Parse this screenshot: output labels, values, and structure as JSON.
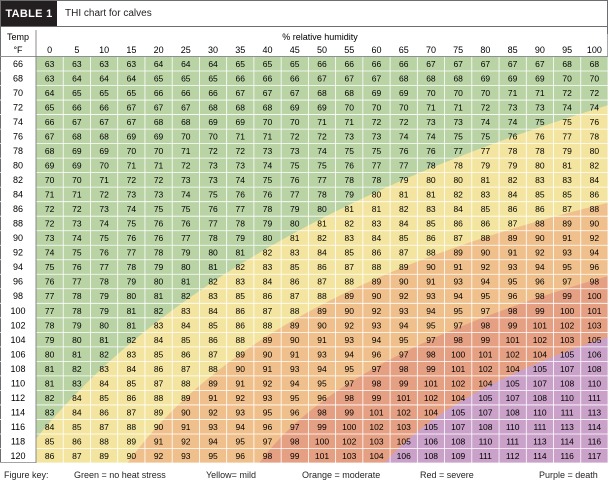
{
  "table_label": "TABLE 1",
  "title": "THI chart for calves",
  "row_header_line1": "Temp",
  "row_header_line2": "°F",
  "column_header": "% relative humidity",
  "footer": {
    "key_label": "Figure key:",
    "green": "Green = no heat stress",
    "yellow": "Yellow= mild",
    "orange": "Orange = moderate",
    "red": "Red = severe",
    "purple": "Purple = death"
  },
  "colors": {
    "green": "#b9d3a5",
    "yellow": "#f3e59f",
    "orange": "#f0c08c",
    "red": "#e5a083",
    "purple": "#c9a1c9"
  },
  "chart_data": {
    "type": "table",
    "row_label": "Temp °F",
    "column_label": "% relative humidity",
    "columns": [
      0,
      5,
      10,
      15,
      20,
      25,
      30,
      35,
      40,
      45,
      50,
      55,
      60,
      65,
      70,
      75,
      80,
      85,
      90,
      95,
      100
    ],
    "rows": [
      66,
      68,
      70,
      72,
      74,
      76,
      78,
      80,
      82,
      84,
      86,
      88,
      90,
      92,
      94,
      96,
      98,
      100,
      102,
      104,
      106,
      108,
      110,
      112,
      114,
      116,
      118,
      120
    ],
    "values": [
      [
        63,
        63,
        63,
        63,
        64,
        64,
        64,
        65,
        65,
        65,
        66,
        66,
        66,
        66,
        67,
        67,
        67,
        67,
        67,
        68,
        68
      ],
      [
        63,
        64,
        64,
        64,
        65,
        65,
        65,
        66,
        66,
        66,
        67,
        67,
        67,
        68,
        68,
        68,
        69,
        69,
        69,
        70,
        70
      ],
      [
        64,
        65,
        65,
        65,
        66,
        66,
        66,
        67,
        67,
        67,
        68,
        68,
        69,
        69,
        70,
        70,
        70,
        71,
        71,
        72,
        72
      ],
      [
        65,
        66,
        66,
        67,
        67,
        67,
        68,
        68,
        68,
        69,
        69,
        70,
        70,
        70,
        71,
        71,
        72,
        73,
        73,
        74,
        74
      ],
      [
        66,
        67,
        67,
        67,
        68,
        68,
        69,
        69,
        70,
        70,
        71,
        71,
        72,
        72,
        73,
        73,
        74,
        74,
        75,
        75,
        76
      ],
      [
        67,
        68,
        68,
        69,
        69,
        70,
        70,
        71,
        71,
        72,
        72,
        73,
        73,
        74,
        74,
        75,
        75,
        76,
        76,
        77,
        78
      ],
      [
        68,
        69,
        69,
        70,
        70,
        71,
        72,
        72,
        73,
        73,
        74,
        75,
        75,
        76,
        76,
        77,
        77,
        78,
        78,
        79,
        80
      ],
      [
        69,
        69,
        70,
        71,
        71,
        72,
        73,
        73,
        74,
        75,
        75,
        76,
        77,
        77,
        78,
        78,
        79,
        79,
        80,
        81,
        82
      ],
      [
        70,
        70,
        71,
        72,
        72,
        73,
        73,
        74,
        75,
        76,
        77,
        78,
        78,
        79,
        80,
        80,
        81,
        82,
        83,
        83,
        84
      ],
      [
        71,
        71,
        72,
        73,
        73,
        74,
        75,
        76,
        76,
        77,
        78,
        79,
        80,
        81,
        81,
        82,
        83,
        84,
        85,
        85,
        86
      ],
      [
        72,
        72,
        73,
        74,
        75,
        75,
        76,
        77,
        78,
        79,
        80,
        81,
        81,
        82,
        83,
        84,
        85,
        86,
        86,
        87,
        88
      ],
      [
        72,
        73,
        74,
        75,
        76,
        76,
        77,
        78,
        79,
        80,
        81,
        82,
        83,
        84,
        85,
        86,
        86,
        87,
        88,
        89,
        90
      ],
      [
        73,
        74,
        75,
        76,
        76,
        77,
        78,
        79,
        80,
        81,
        82,
        83,
        84,
        85,
        86,
        87,
        88,
        89,
        90,
        91,
        92
      ],
      [
        74,
        75,
        76,
        77,
        78,
        79,
        80,
        81,
        82,
        83,
        84,
        85,
        86,
        87,
        88,
        89,
        90,
        91,
        92,
        93,
        94
      ],
      [
        75,
        76,
        77,
        78,
        79,
        80,
        81,
        82,
        83,
        85,
        86,
        87,
        88,
        89,
        90,
        91,
        92,
        93,
        94,
        95,
        96
      ],
      [
        76,
        77,
        78,
        79,
        80,
        81,
        82,
        83,
        84,
        86,
        87,
        88,
        89,
        90,
        91,
        93,
        94,
        95,
        96,
        97,
        98
      ],
      [
        77,
        78,
        79,
        80,
        81,
        82,
        83,
        85,
        86,
        87,
        88,
        89,
        90,
        92,
        93,
        94,
        95,
        96,
        98,
        99,
        100
      ],
      [
        77,
        78,
        79,
        81,
        82,
        83,
        84,
        86,
        87,
        88,
        89,
        90,
        92,
        93,
        94,
        95,
        97,
        98,
        99,
        100,
        101
      ],
      [
        78,
        79,
        80,
        81,
        83,
        84,
        85,
        86,
        88,
        89,
        90,
        92,
        93,
        94,
        95,
        97,
        98,
        99,
        101,
        102,
        103
      ],
      [
        79,
        80,
        81,
        82,
        84,
        85,
        86,
        88,
        89,
        90,
        91,
        93,
        94,
        95,
        97,
        98,
        99,
        101,
        102,
        103,
        105
      ],
      [
        80,
        81,
        82,
        83,
        85,
        86,
        87,
        89,
        90,
        91,
        93,
        94,
        96,
        97,
        98,
        100,
        101,
        102,
        104,
        105,
        106
      ],
      [
        81,
        82,
        83,
        84,
        86,
        87,
        88,
        90,
        91,
        93,
        94,
        95,
        97,
        98,
        99,
        101,
        102,
        104,
        105,
        107,
        108
      ],
      [
        81,
        83,
        84,
        85,
        87,
        88,
        89,
        91,
        92,
        94,
        95,
        97,
        98,
        99,
        101,
        102,
        104,
        105,
        107,
        108,
        110
      ],
      [
        82,
        84,
        85,
        86,
        88,
        89,
        91,
        92,
        93,
        95,
        96,
        98,
        99,
        101,
        102,
        104,
        105,
        107,
        108,
        110,
        111
      ],
      [
        83,
        84,
        86,
        87,
        89,
        90,
        92,
        93,
        95,
        96,
        98,
        99,
        101,
        102,
        104,
        105,
        107,
        108,
        110,
        111,
        113
      ],
      [
        84,
        85,
        87,
        88,
        90,
        91,
        93,
        94,
        96,
        97,
        99,
        100,
        102,
        103,
        105,
        107,
        108,
        110,
        111,
        113,
        114
      ],
      [
        85,
        86,
        88,
        89,
        91,
        92,
        94,
        95,
        97,
        98,
        100,
        102,
        103,
        105,
        106,
        108,
        110,
        111,
        113,
        114,
        116
      ],
      [
        86,
        87,
        89,
        90,
        92,
        93,
        95,
        96,
        98,
        99,
        101,
        103,
        104,
        106,
        108,
        109,
        111,
        112,
        114,
        116,
        117
      ]
    ],
    "categories": {
      "green": "no heat stress",
      "yellow": "mild",
      "orange": "moderate",
      "red": "severe",
      "purple": "death"
    }
  }
}
